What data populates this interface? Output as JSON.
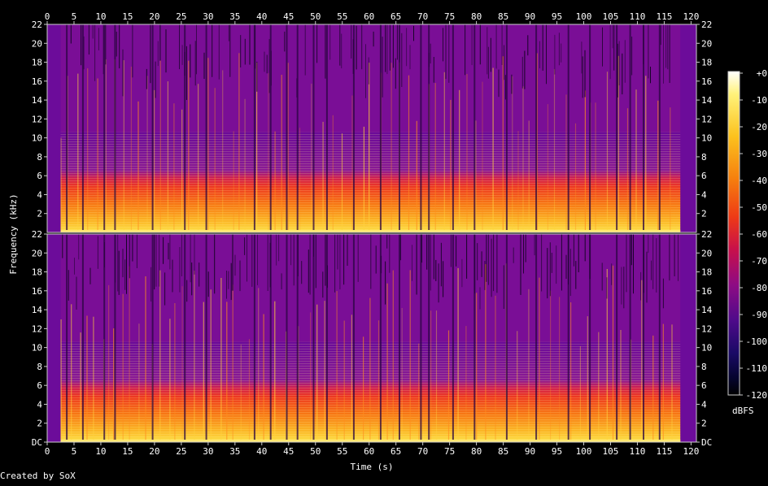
{
  "chart_data": {
    "type": "heatmap",
    "title": "",
    "xlabel": "Time (s)",
    "ylabel": "Frequency (kHz)",
    "xlim": [
      0,
      121
    ],
    "x_ticks": [
      "0",
      "5",
      "10",
      "15",
      "20",
      "25",
      "30",
      "35",
      "40",
      "45",
      "50",
      "55",
      "60",
      "65",
      "70",
      "75",
      "80",
      "85",
      "90",
      "95",
      "100",
      "105",
      "110",
      "115",
      "120"
    ],
    "y_ticks": [
      "2",
      "4",
      "6",
      "8",
      "10",
      "12",
      "14",
      "16",
      "18",
      "20",
      "22"
    ],
    "y_ticks_bottom_channel": [
      "DC",
      "2",
      "4",
      "6",
      "8",
      "10",
      "12",
      "14",
      "16",
      "18",
      "20",
      "22"
    ],
    "ylim_khz": [
      0,
      22
    ],
    "channels": 2,
    "colorbar": {
      "label": "dBFS",
      "ticks": [
        "+0",
        "-10",
        "-20",
        "-30",
        "-40",
        "-50",
        "-60",
        "-70",
        "-80",
        "-90",
        "-100",
        "-110",
        "-120"
      ],
      "range_dbfs": [
        -120,
        0
      ]
    },
    "footer": "Created by SoX",
    "signal": {
      "audible_start_s": 2.5,
      "audible_end_s": 118,
      "main_energy_below_khz": 10,
      "quiet_dips_s": [
        3.5,
        6.5,
        10.5,
        12.5,
        19.5,
        25.5,
        29.5,
        38.5,
        41.5,
        44.5,
        46.5,
        49.5,
        52,
        57,
        62,
        65.5,
        69.5,
        71,
        75.5,
        79.5,
        85.5,
        91,
        97,
        101,
        106,
        108.5,
        111,
        114
      ]
    }
  }
}
